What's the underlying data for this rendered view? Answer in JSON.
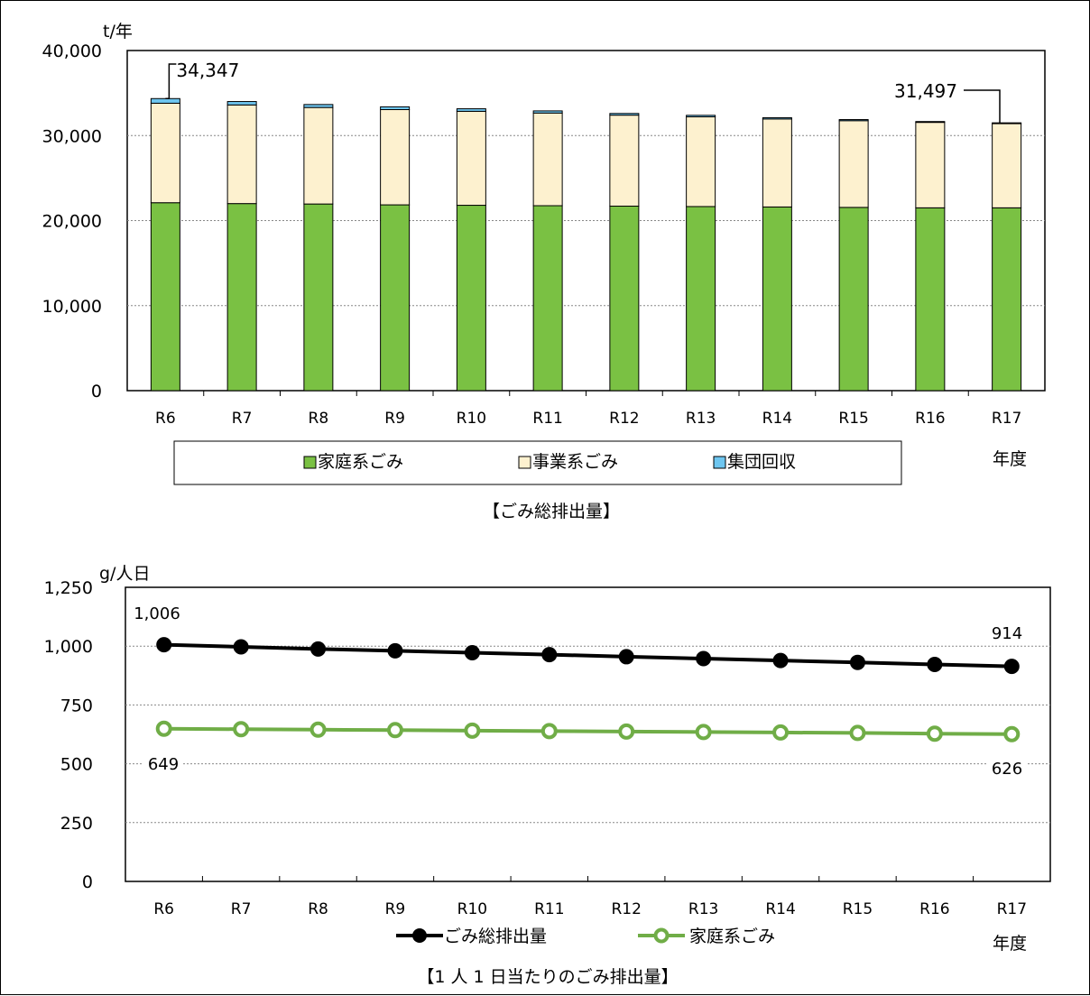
{
  "chart_data": [
    {
      "type": "bar",
      "stacked": true,
      "caption": "【ごみ総排出量】",
      "y_unit": "t/年",
      "x_unit": "年度",
      "categories": [
        "R6",
        "R7",
        "R8",
        "R9",
        "R10",
        "R11",
        "R12",
        "R13",
        "R14",
        "R15",
        "R16",
        "R17"
      ],
      "series": [
        {
          "name": "家庭系ごみ",
          "color": "#7ac143",
          "values": [
            22100,
            22000,
            21950,
            21850,
            21800,
            21750,
            21700,
            21650,
            21600,
            21550,
            21500,
            21500
          ]
        },
        {
          "name": "事業系ごみ",
          "color": "#fdf1cf",
          "values": [
            11700,
            11600,
            11350,
            11200,
            11050,
            10900,
            10700,
            10550,
            10350,
            10200,
            10050,
            9900
          ]
        },
        {
          "name": "集団回収",
          "color": "#6ec6f0",
          "values": [
            547,
            400,
            350,
            330,
            300,
            250,
            200,
            180,
            150,
            130,
            100,
            97
          ]
        }
      ],
      "totals": [
        34347,
        34000,
        33650,
        33380,
        33150,
        32900,
        32600,
        32380,
        32100,
        31880,
        31650,
        31497
      ],
      "ylim": [
        0,
        40000
      ],
      "yticks": [
        "0",
        "10,000",
        "20,000",
        "30,000",
        "40,000"
      ],
      "annotations": [
        {
          "category": "R6",
          "text": "34,347"
        },
        {
          "category": "R17",
          "text": "31,497"
        }
      ],
      "legend_position": "bottom",
      "grid": true
    },
    {
      "type": "line",
      "caption": "【1 人 1 日当たりのごみ排出量】",
      "y_unit": "g/人日",
      "x_unit": "年度",
      "categories": [
        "R6",
        "R7",
        "R8",
        "R9",
        "R10",
        "R11",
        "R12",
        "R13",
        "R14",
        "R15",
        "R16",
        "R17"
      ],
      "series": [
        {
          "name": "ごみ総排出量",
          "color": "#000000",
          "values": [
            1006,
            997,
            988,
            980,
            972,
            964,
            955,
            947,
            939,
            931,
            922,
            914
          ]
        },
        {
          "name": "家庭系ごみ",
          "color": "#70ad47",
          "values": [
            649,
            647,
            645,
            643,
            641,
            639,
            637,
            635,
            633,
            631,
            628,
            626
          ]
        }
      ],
      "ylim": [
        0,
        1250
      ],
      "yticks": [
        "0",
        "250",
        "500",
        "750",
        "1,000",
        "1,250"
      ],
      "annotations": [
        {
          "series": "ごみ総排出量",
          "category": "R6",
          "text": "1,006"
        },
        {
          "series": "ごみ総排出量",
          "category": "R17",
          "text": "914"
        },
        {
          "series": "家庭系ごみ",
          "category": "R6",
          "text": "649"
        },
        {
          "series": "家庭系ごみ",
          "category": "R17",
          "text": "626"
        }
      ],
      "legend_position": "bottom",
      "grid": true
    }
  ]
}
